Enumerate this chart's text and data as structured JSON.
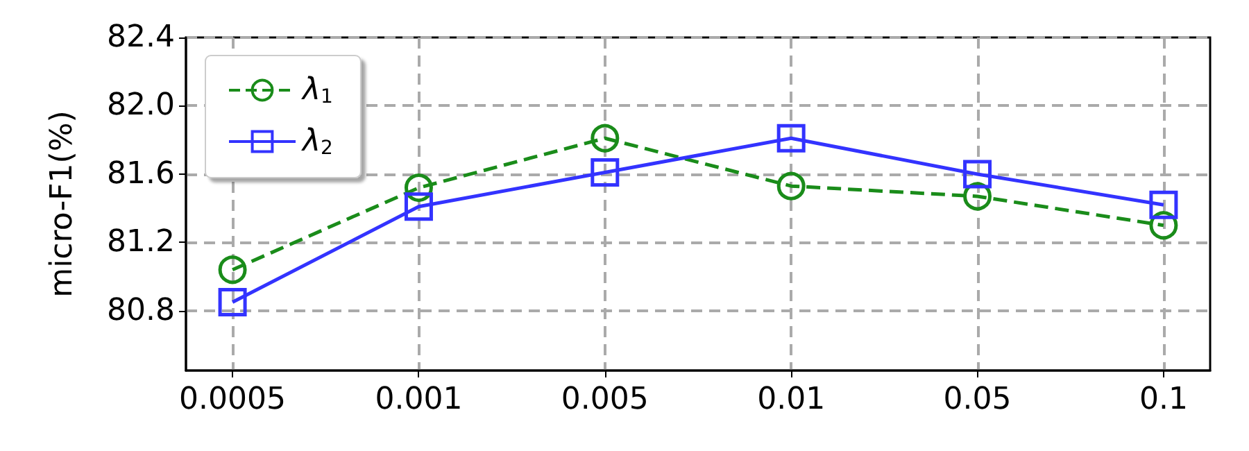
{
  "chart_data": {
    "type": "line",
    "ylabel": "micro-F1(%)",
    "categories": [
      "0.0005",
      "0.001",
      "0.005",
      "0.01",
      "0.05",
      "0.1"
    ],
    "series": [
      {
        "name": "λ$_{1}$",
        "color": "#1a8c1a",
        "values": [
          81.04,
          81.52,
          81.81,
          81.53,
          81.47,
          81.3
        ],
        "marker": "circle",
        "line_style": "dashed"
      },
      {
        "name": "λ$_{2}$",
        "color": "#3333ff",
        "values": [
          80.85,
          81.41,
          81.61,
          81.81,
          81.6,
          81.42
        ],
        "marker": "square",
        "line_style": "solid"
      }
    ],
    "ylim": [
      80.45,
      82.4
    ],
    "yticks": [
      80.8,
      81.2,
      81.6,
      {
        "value": 82,
        "label": "82.0"
      },
      82.4
    ],
    "grid": true,
    "legend": "top left"
  }
}
